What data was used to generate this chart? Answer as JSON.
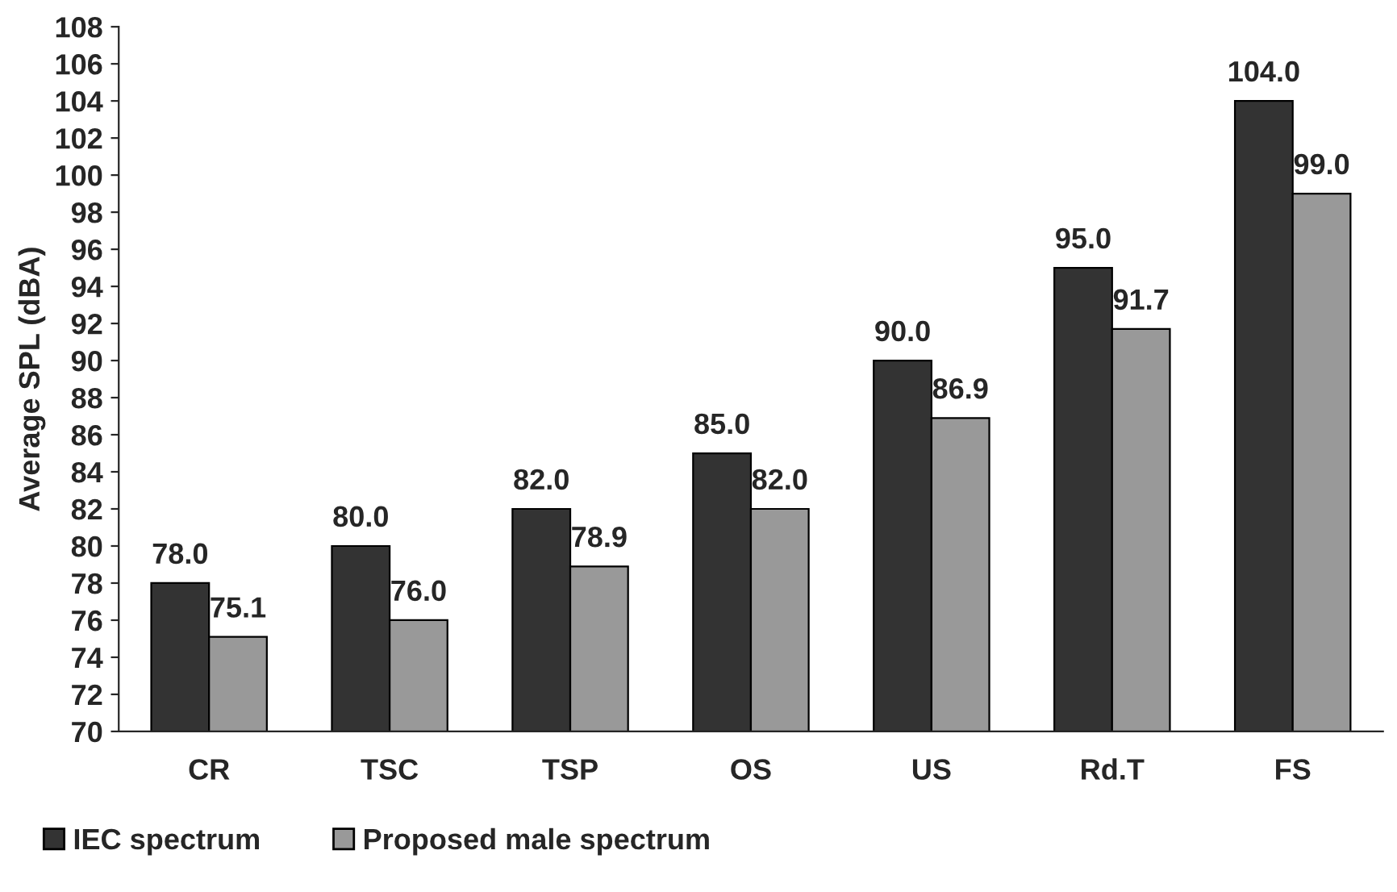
{
  "chart_data": {
    "type": "bar",
    "ylabel": "Average SPL (dBA)",
    "categories": [
      "CR",
      "TSC",
      "TSP",
      "OS",
      "US",
      "Rd.T",
      "FS"
    ],
    "series": [
      {
        "name": "IEC spectrum",
        "color": "#333333",
        "values": [
          78.0,
          80.0,
          82.0,
          85.0,
          90.0,
          95.0,
          104.0
        ],
        "value_labels": [
          "78.0",
          "80.0",
          "82.0",
          "85.0",
          "90.0",
          "95.0",
          "104.0"
        ]
      },
      {
        "name": "Proposed male spectrum",
        "color": "#999999",
        "values": [
          75.1,
          76.0,
          78.9,
          82.0,
          86.9,
          91.7,
          99.0
        ],
        "value_labels": [
          "75.1",
          "76.0",
          "78.9",
          "82.0",
          "86.9",
          "91.7",
          "99.0"
        ]
      }
    ],
    "ylim": [
      70,
      108
    ],
    "yticks": [
      70,
      72,
      74,
      76,
      78,
      80,
      82,
      84,
      86,
      88,
      90,
      92,
      94,
      96,
      98,
      100,
      102,
      104,
      106,
      108
    ],
    "grid": false,
    "legend": "bottom"
  }
}
